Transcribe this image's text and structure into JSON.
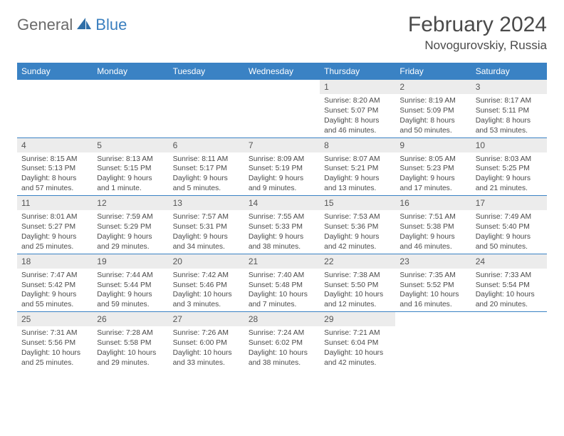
{
  "brand": {
    "general": "General",
    "blue": "Blue"
  },
  "title": "February 2024",
  "location": "Novogurovskiy, Russia",
  "colors": {
    "header_bg": "#3a82c4",
    "header_text": "#ffffff",
    "daynum_bg": "#ececec",
    "text": "#4a4a4a",
    "rule": "#3a82c4",
    "logo_gray": "#6a6a6a",
    "logo_blue": "#3a7fbf"
  },
  "weekdays": [
    "Sunday",
    "Monday",
    "Tuesday",
    "Wednesday",
    "Thursday",
    "Friday",
    "Saturday"
  ],
  "weeks": [
    [
      null,
      null,
      null,
      null,
      {
        "n": "1",
        "sr": "Sunrise: 8:20 AM",
        "ss": "Sunset: 5:07 PM",
        "d1": "Daylight: 8 hours",
        "d2": "and 46 minutes."
      },
      {
        "n": "2",
        "sr": "Sunrise: 8:19 AM",
        "ss": "Sunset: 5:09 PM",
        "d1": "Daylight: 8 hours",
        "d2": "and 50 minutes."
      },
      {
        "n": "3",
        "sr": "Sunrise: 8:17 AM",
        "ss": "Sunset: 5:11 PM",
        "d1": "Daylight: 8 hours",
        "d2": "and 53 minutes."
      }
    ],
    [
      {
        "n": "4",
        "sr": "Sunrise: 8:15 AM",
        "ss": "Sunset: 5:13 PM",
        "d1": "Daylight: 8 hours",
        "d2": "and 57 minutes."
      },
      {
        "n": "5",
        "sr": "Sunrise: 8:13 AM",
        "ss": "Sunset: 5:15 PM",
        "d1": "Daylight: 9 hours",
        "d2": "and 1 minute."
      },
      {
        "n": "6",
        "sr": "Sunrise: 8:11 AM",
        "ss": "Sunset: 5:17 PM",
        "d1": "Daylight: 9 hours",
        "d2": "and 5 minutes."
      },
      {
        "n": "7",
        "sr": "Sunrise: 8:09 AM",
        "ss": "Sunset: 5:19 PM",
        "d1": "Daylight: 9 hours",
        "d2": "and 9 minutes."
      },
      {
        "n": "8",
        "sr": "Sunrise: 8:07 AM",
        "ss": "Sunset: 5:21 PM",
        "d1": "Daylight: 9 hours",
        "d2": "and 13 minutes."
      },
      {
        "n": "9",
        "sr": "Sunrise: 8:05 AM",
        "ss": "Sunset: 5:23 PM",
        "d1": "Daylight: 9 hours",
        "d2": "and 17 minutes."
      },
      {
        "n": "10",
        "sr": "Sunrise: 8:03 AM",
        "ss": "Sunset: 5:25 PM",
        "d1": "Daylight: 9 hours",
        "d2": "and 21 minutes."
      }
    ],
    [
      {
        "n": "11",
        "sr": "Sunrise: 8:01 AM",
        "ss": "Sunset: 5:27 PM",
        "d1": "Daylight: 9 hours",
        "d2": "and 25 minutes."
      },
      {
        "n": "12",
        "sr": "Sunrise: 7:59 AM",
        "ss": "Sunset: 5:29 PM",
        "d1": "Daylight: 9 hours",
        "d2": "and 29 minutes."
      },
      {
        "n": "13",
        "sr": "Sunrise: 7:57 AM",
        "ss": "Sunset: 5:31 PM",
        "d1": "Daylight: 9 hours",
        "d2": "and 34 minutes."
      },
      {
        "n": "14",
        "sr": "Sunrise: 7:55 AM",
        "ss": "Sunset: 5:33 PM",
        "d1": "Daylight: 9 hours",
        "d2": "and 38 minutes."
      },
      {
        "n": "15",
        "sr": "Sunrise: 7:53 AM",
        "ss": "Sunset: 5:36 PM",
        "d1": "Daylight: 9 hours",
        "d2": "and 42 minutes."
      },
      {
        "n": "16",
        "sr": "Sunrise: 7:51 AM",
        "ss": "Sunset: 5:38 PM",
        "d1": "Daylight: 9 hours",
        "d2": "and 46 minutes."
      },
      {
        "n": "17",
        "sr": "Sunrise: 7:49 AM",
        "ss": "Sunset: 5:40 PM",
        "d1": "Daylight: 9 hours",
        "d2": "and 50 minutes."
      }
    ],
    [
      {
        "n": "18",
        "sr": "Sunrise: 7:47 AM",
        "ss": "Sunset: 5:42 PM",
        "d1": "Daylight: 9 hours",
        "d2": "and 55 minutes."
      },
      {
        "n": "19",
        "sr": "Sunrise: 7:44 AM",
        "ss": "Sunset: 5:44 PM",
        "d1": "Daylight: 9 hours",
        "d2": "and 59 minutes."
      },
      {
        "n": "20",
        "sr": "Sunrise: 7:42 AM",
        "ss": "Sunset: 5:46 PM",
        "d1": "Daylight: 10 hours",
        "d2": "and 3 minutes."
      },
      {
        "n": "21",
        "sr": "Sunrise: 7:40 AM",
        "ss": "Sunset: 5:48 PM",
        "d1": "Daylight: 10 hours",
        "d2": "and 7 minutes."
      },
      {
        "n": "22",
        "sr": "Sunrise: 7:38 AM",
        "ss": "Sunset: 5:50 PM",
        "d1": "Daylight: 10 hours",
        "d2": "and 12 minutes."
      },
      {
        "n": "23",
        "sr": "Sunrise: 7:35 AM",
        "ss": "Sunset: 5:52 PM",
        "d1": "Daylight: 10 hours",
        "d2": "and 16 minutes."
      },
      {
        "n": "24",
        "sr": "Sunrise: 7:33 AM",
        "ss": "Sunset: 5:54 PM",
        "d1": "Daylight: 10 hours",
        "d2": "and 20 minutes."
      }
    ],
    [
      {
        "n": "25",
        "sr": "Sunrise: 7:31 AM",
        "ss": "Sunset: 5:56 PM",
        "d1": "Daylight: 10 hours",
        "d2": "and 25 minutes."
      },
      {
        "n": "26",
        "sr": "Sunrise: 7:28 AM",
        "ss": "Sunset: 5:58 PM",
        "d1": "Daylight: 10 hours",
        "d2": "and 29 minutes."
      },
      {
        "n": "27",
        "sr": "Sunrise: 7:26 AM",
        "ss": "Sunset: 6:00 PM",
        "d1": "Daylight: 10 hours",
        "d2": "and 33 minutes."
      },
      {
        "n": "28",
        "sr": "Sunrise: 7:24 AM",
        "ss": "Sunset: 6:02 PM",
        "d1": "Daylight: 10 hours",
        "d2": "and 38 minutes."
      },
      {
        "n": "29",
        "sr": "Sunrise: 7:21 AM",
        "ss": "Sunset: 6:04 PM",
        "d1": "Daylight: 10 hours",
        "d2": "and 42 minutes."
      },
      null,
      null
    ]
  ]
}
